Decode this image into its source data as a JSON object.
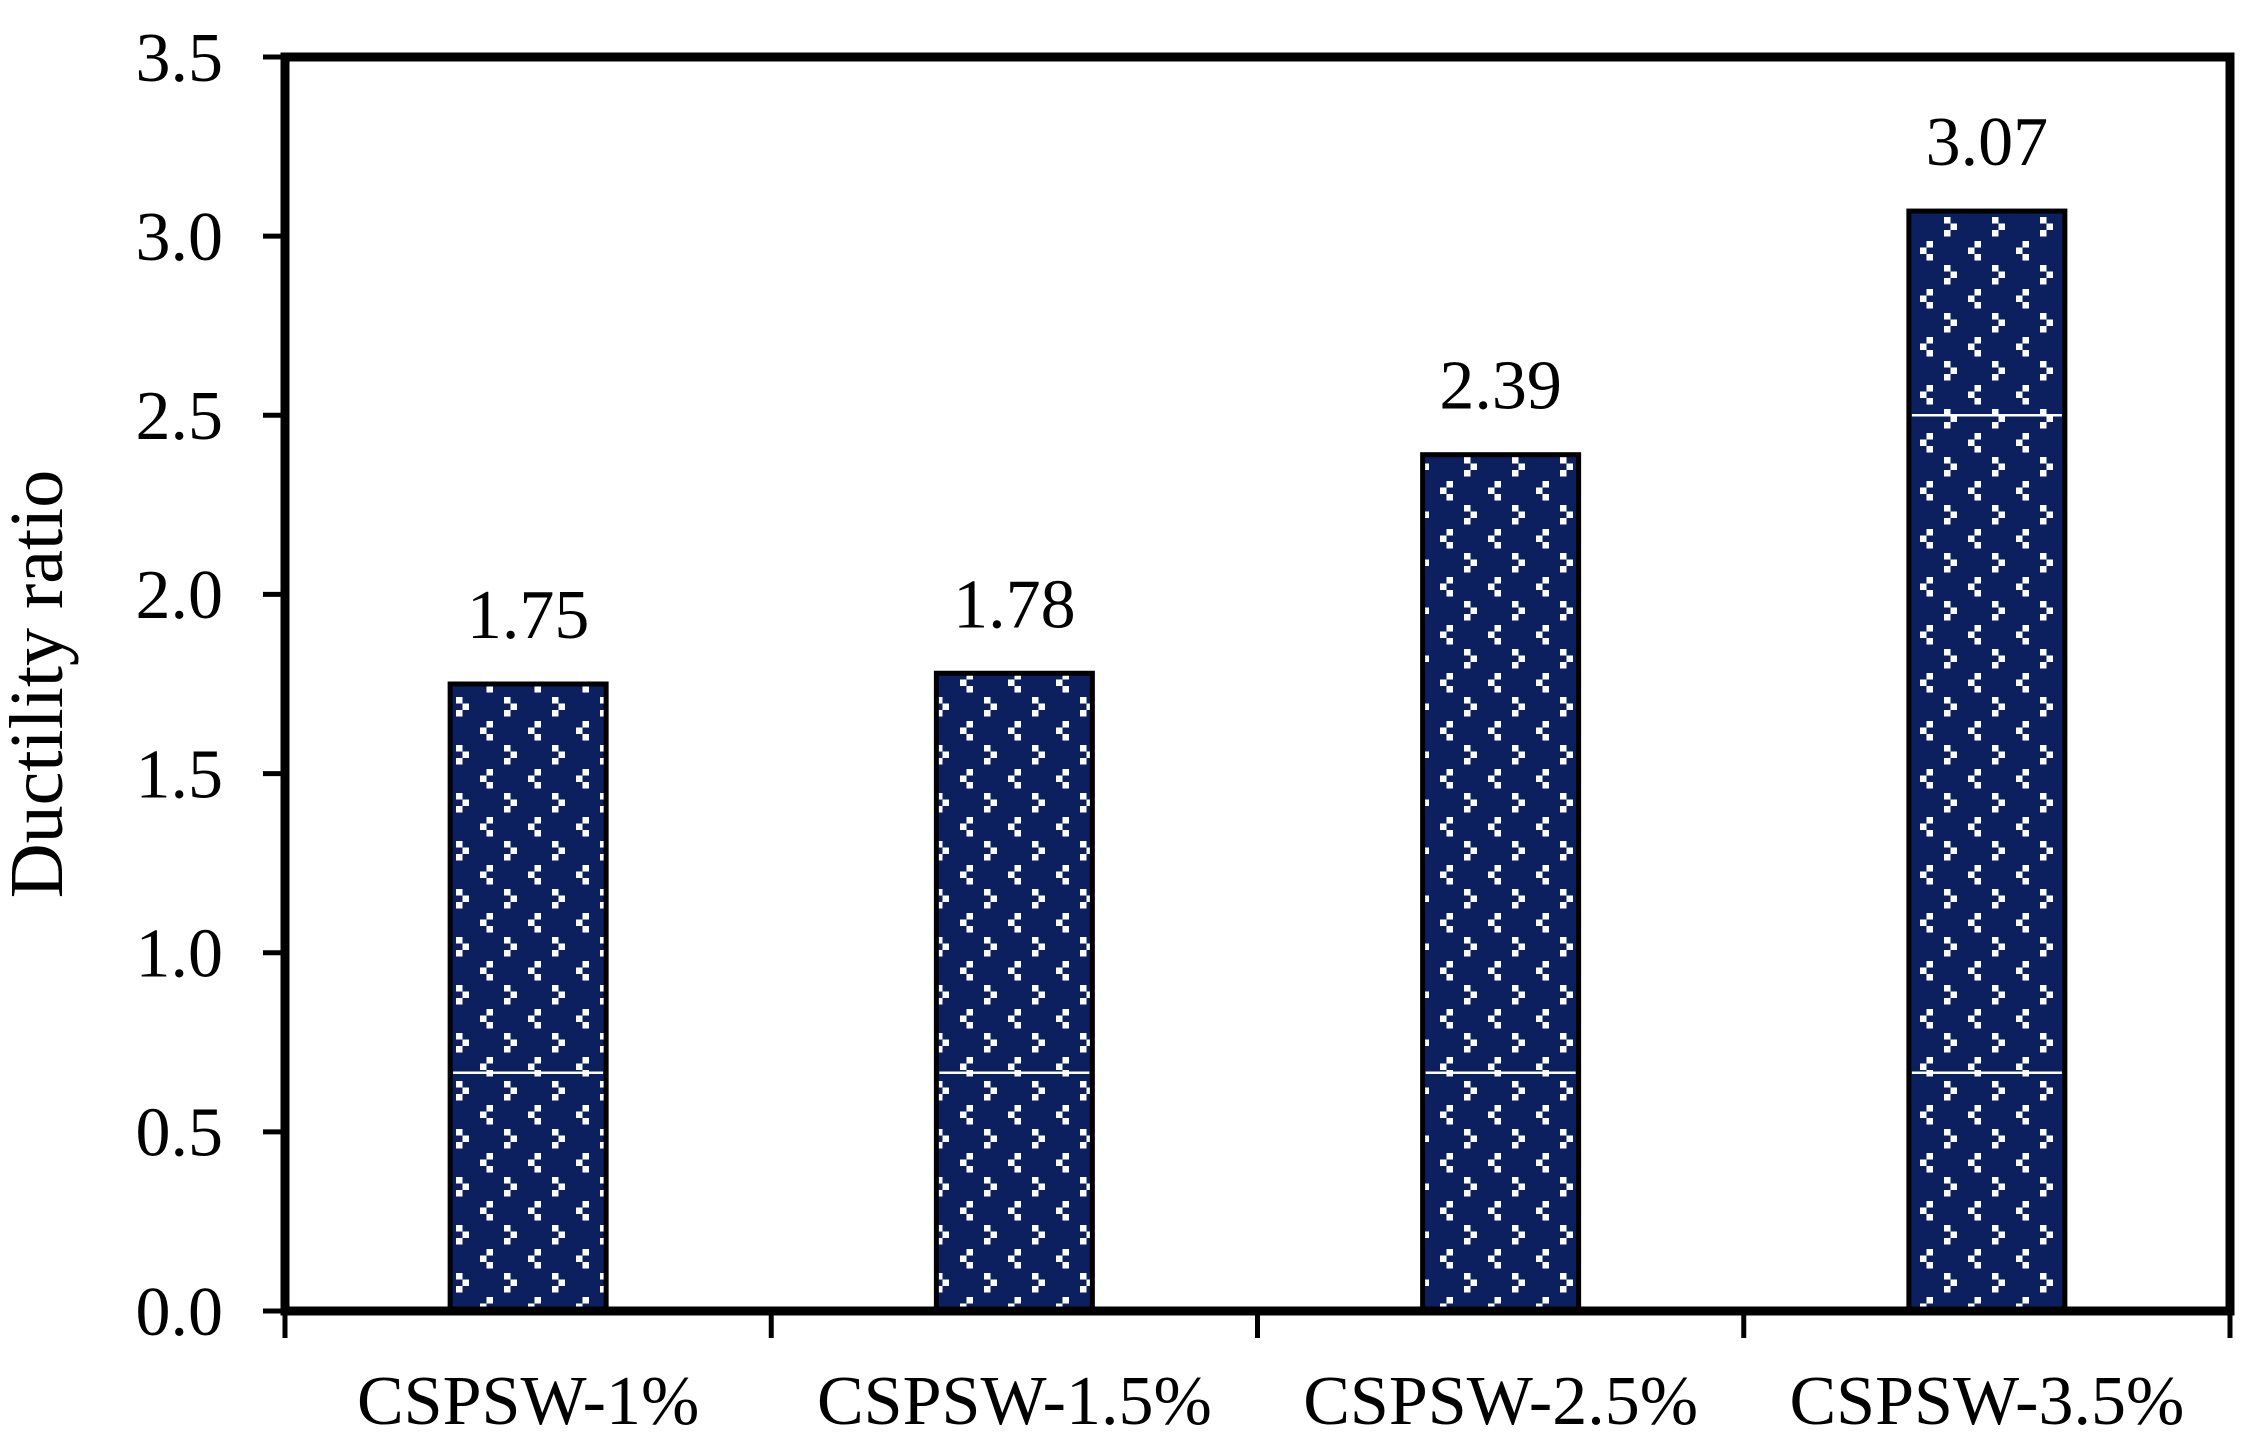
{
  "figure": {
    "background_color": "#ffffff",
    "frame_color": "#000000"
  },
  "chart_data": {
    "type": "bar",
    "title": "",
    "xlabel": "",
    "ylabel": "Ductility ratio",
    "categories": [
      "CSPSW-1%",
      "CSPSW-1.5%",
      "CSPSW-2.5%",
      "CSPSW-3.5%"
    ],
    "values": [
      1.75,
      1.78,
      2.39,
      3.07
    ],
    "value_labels": [
      "1.75",
      "1.78",
      "2.39",
      "3.07"
    ],
    "ylim": [
      0,
      3.5
    ],
    "ytick_interval": 0.5,
    "ytick_labels": [
      "0.0",
      "0.5",
      "1.0",
      "1.5",
      "2.0",
      "2.5",
      "3.0",
      "3.5"
    ],
    "grid": false,
    "legend": false,
    "frame": "full-box",
    "tick_direction": "out",
    "bar_fill_color": "#0c2060",
    "bar_border_color": "#000000",
    "bar_pattern": "white-chevron-dot-grid",
    "pattern_dot_color": "#ffffff",
    "pattern_seam_values": [
      0.665,
      2.5
    ]
  }
}
